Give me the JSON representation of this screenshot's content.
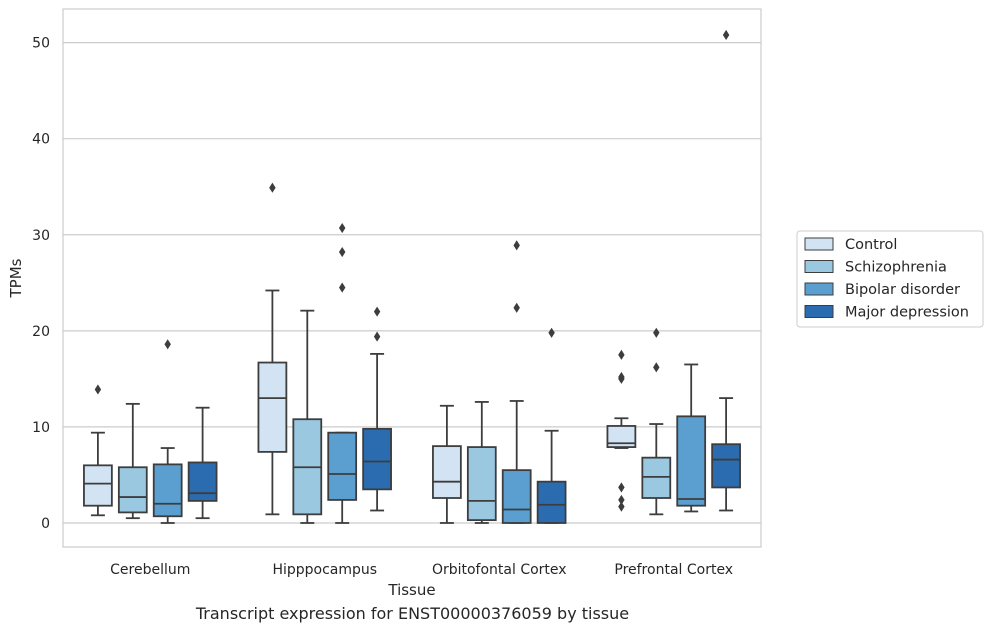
{
  "chart_data": {
    "type": "box",
    "xlabel": "Tissue",
    "ylabel": "TPMs",
    "ylim": [
      -2.5,
      53.5
    ],
    "yticks": [
      0,
      10,
      20,
      30,
      40,
      50
    ],
    "grid": "horizontal",
    "legend_position": "right",
    "categories": [
      "Cerebellum",
      "Hipppocampus",
      "Orbitofontal Cortex",
      "Prefrontal Cortex"
    ],
    "series": [
      {
        "name": "Control",
        "color": "#d2e3f3",
        "boxes": [
          {
            "min": 0.8,
            "q1": 1.8,
            "median": 4.1,
            "q3": 6.0,
            "max": 9.4,
            "outliers": [
              13.9
            ]
          },
          {
            "min": 0.9,
            "q1": 7.4,
            "median": 13.0,
            "q3": 16.7,
            "max": 24.2,
            "outliers": [
              34.9
            ]
          },
          {
            "min": 0.0,
            "q1": 2.6,
            "median": 4.3,
            "q3": 8.0,
            "max": 12.2,
            "outliers": []
          },
          {
            "min": 7.8,
            "q1": 7.9,
            "median": 8.3,
            "q3": 10.1,
            "max": 10.9,
            "outliers": [
              1.7,
              2.4,
              3.7,
              15.0,
              15.2,
              17.5
            ]
          }
        ]
      },
      {
        "name": "Schizophrenia",
        "color": "#9ac8e1",
        "boxes": [
          {
            "min": 0.5,
            "q1": 1.1,
            "median": 2.7,
            "q3": 5.8,
            "max": 12.4,
            "outliers": []
          },
          {
            "min": 0.0,
            "q1": 0.9,
            "median": 5.8,
            "q3": 10.8,
            "max": 22.1,
            "outliers": []
          },
          {
            "min": 0.0,
            "q1": 0.3,
            "median": 2.3,
            "q3": 7.9,
            "max": 12.6,
            "outliers": []
          },
          {
            "min": 0.9,
            "q1": 2.6,
            "median": 4.8,
            "q3": 6.8,
            "max": 10.3,
            "outliers": [
              16.2,
              19.8
            ]
          }
        ]
      },
      {
        "name": "Bipolar disorder",
        "color": "#5a9fcf",
        "boxes": [
          {
            "min": 0.0,
            "q1": 0.7,
            "median": 2.0,
            "q3": 6.1,
            "max": 7.8,
            "outliers": [
              18.6
            ]
          },
          {
            "min": 0.0,
            "q1": 2.4,
            "median": 5.1,
            "q3": 9.4,
            "max": 9.4,
            "outliers": [
              24.5,
              28.2,
              30.7
            ]
          },
          {
            "min": 0.0,
            "q1": 0.0,
            "median": 1.4,
            "q3": 5.5,
            "max": 12.7,
            "outliers": [
              22.4,
              28.9
            ]
          },
          {
            "min": 1.2,
            "q1": 1.8,
            "median": 2.5,
            "q3": 11.1,
            "max": 16.5,
            "outliers": []
          }
        ]
      },
      {
        "name": "Major depression",
        "color": "#2b6cb0",
        "boxes": [
          {
            "min": 0.5,
            "q1": 2.3,
            "median": 3.1,
            "q3": 6.3,
            "max": 12.0,
            "outliers": []
          },
          {
            "min": 1.3,
            "q1": 3.5,
            "median": 6.4,
            "q3": 9.8,
            "max": 17.6,
            "outliers": [
              19.4,
              22.0
            ]
          },
          {
            "min": 0.0,
            "q1": 0.0,
            "median": 1.9,
            "q3": 4.3,
            "max": 9.6,
            "outliers": [
              19.8
            ]
          },
          {
            "min": 1.3,
            "q1": 3.7,
            "median": 6.6,
            "q3": 8.2,
            "max": 13.0,
            "outliers": [
              50.8
            ]
          }
        ]
      }
    ],
    "caption": "Transcript expression for ENST00000376059 by tissue"
  }
}
